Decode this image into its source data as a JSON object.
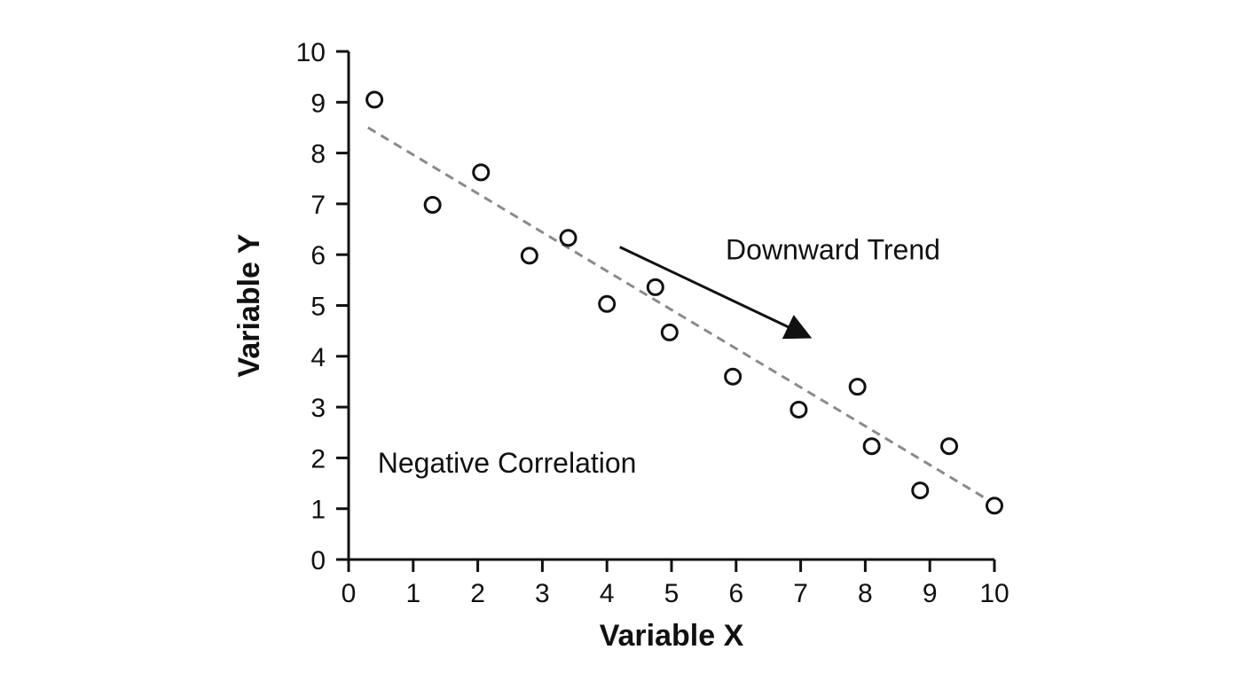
{
  "chart_data": {
    "type": "scatter",
    "xlabel": "Variable X",
    "ylabel": "Variable Y",
    "xlim": [
      0,
      10
    ],
    "ylim": [
      0,
      10
    ],
    "x_ticks": [
      "0",
      "1",
      "2",
      "3",
      "4",
      "5",
      "6",
      "7",
      "8",
      "9",
      "10"
    ],
    "y_ticks": [
      "0",
      "1",
      "2",
      "3",
      "4",
      "5",
      "6",
      "7",
      "8",
      "9",
      "10"
    ],
    "grid": false,
    "points": [
      {
        "x": 0.4,
        "y": 9.05
      },
      {
        "x": 1.3,
        "y": 6.98
      },
      {
        "x": 2.05,
        "y": 7.62
      },
      {
        "x": 2.8,
        "y": 5.98
      },
      {
        "x": 3.4,
        "y": 6.33
      },
      {
        "x": 4.0,
        "y": 5.03
      },
      {
        "x": 4.75,
        "y": 5.36
      },
      {
        "x": 4.97,
        "y": 4.47
      },
      {
        "x": 5.95,
        "y": 3.6
      },
      {
        "x": 6.97,
        "y": 2.95
      },
      {
        "x": 7.88,
        "y": 3.4
      },
      {
        "x": 8.1,
        "y": 2.23
      },
      {
        "x": 8.85,
        "y": 1.36
      },
      {
        "x": 9.3,
        "y": 2.23
      },
      {
        "x": 10.0,
        "y": 1.06
      }
    ],
    "trendline": {
      "x": [
        0.3,
        10.0
      ],
      "y": [
        8.5,
        1.1
      ],
      "style": "dashed",
      "color": "#8a8a8a"
    },
    "annotations": [
      {
        "text": "Downward Trend",
        "x": 7.5,
        "y": 6.1,
        "arrow_from": [
          4.2,
          6.15
        ],
        "arrow_to": [
          7.1,
          4.4
        ]
      },
      {
        "text": "Negative Correlation",
        "x": 0.45,
        "y": 1.9
      }
    ]
  },
  "colors": {
    "axis": "#111111",
    "marker_stroke": "#111111",
    "marker_fill": "#ffffff",
    "trendline": "#8a8a8a"
  }
}
